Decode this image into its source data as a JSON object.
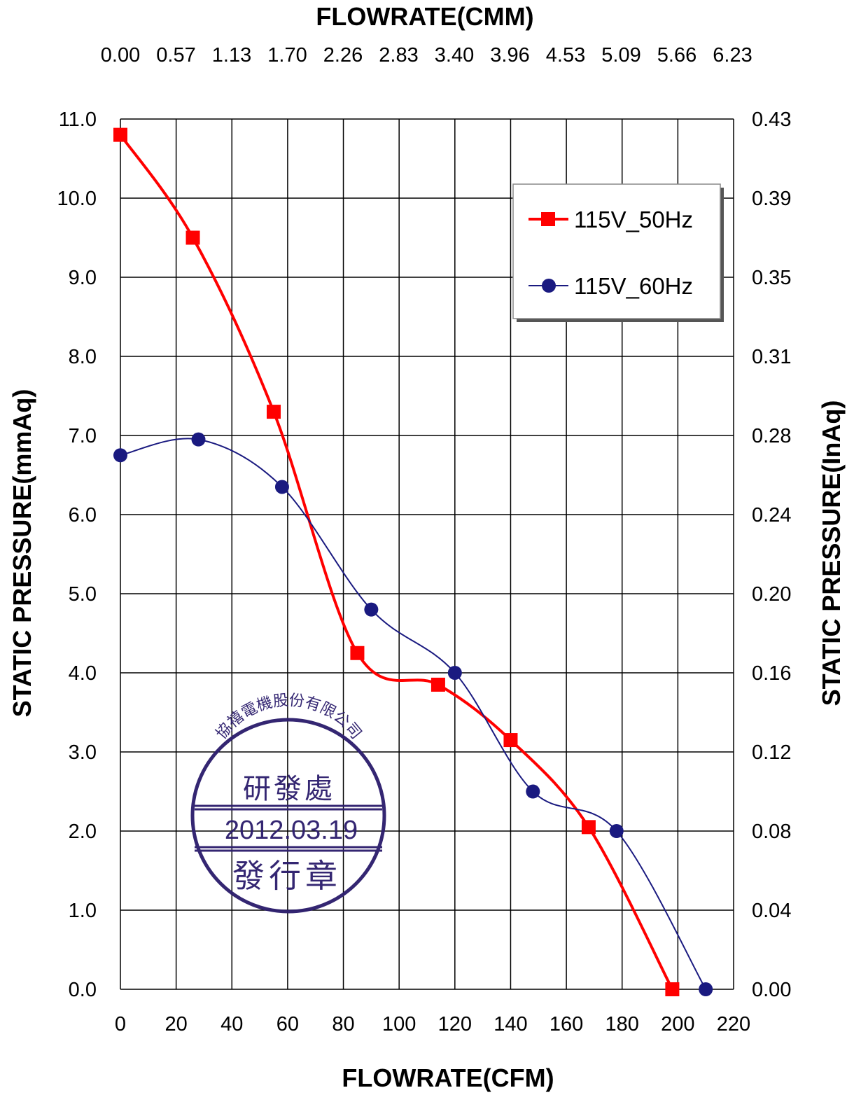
{
  "chart_data": {
    "type": "line",
    "title": "",
    "xlabel": "FLOWRATE(CFM)",
    "x2label": "FLOWRATE(CMM)",
    "ylabel": "STATIC PRESSURE(mmAq)",
    "y2label": "STATIC PRESSURE(InAq)",
    "xlim": [
      0,
      220
    ],
    "ylim": [
      0,
      11
    ],
    "x_ticks": [
      "0",
      "20",
      "40",
      "60",
      "80",
      "100",
      "120",
      "140",
      "160",
      "180",
      "200",
      "220"
    ],
    "x2_ticks": [
      "0.00",
      "0.57",
      "1.13",
      "1.70",
      "2.26",
      "2.83",
      "3.40",
      "3.96",
      "4.53",
      "5.09",
      "5.66",
      "6.23"
    ],
    "y_ticks": [
      "0.0",
      "1.0",
      "2.0",
      "3.0",
      "4.0",
      "5.0",
      "6.0",
      "7.0",
      "8.0",
      "9.0",
      "10.0",
      "11.0"
    ],
    "y2_ticks": [
      "0.00",
      "0.04",
      "0.08",
      "0.12",
      "0.16",
      "0.20",
      "0.24",
      "0.28",
      "0.31",
      "0.35",
      "0.39",
      "0.43"
    ],
    "grid": true,
    "legend_position": "top-right",
    "series": [
      {
        "name": "115V_50Hz",
        "color": "#ff0000",
        "marker": "square",
        "points": [
          [
            0,
            10.8
          ],
          [
            26,
            9.5
          ],
          [
            55,
            7.3
          ],
          [
            85,
            4.25
          ],
          [
            114,
            3.85
          ],
          [
            140,
            3.15
          ],
          [
            168,
            2.05
          ],
          [
            198,
            0.0
          ]
        ]
      },
      {
        "name": "115V_60Hz",
        "color": "#1a1a80",
        "marker": "circle",
        "points": [
          [
            0,
            6.75
          ],
          [
            28,
            6.95
          ],
          [
            58,
            6.35
          ],
          [
            90,
            4.8
          ],
          [
            120,
            4.0
          ],
          [
            148,
            2.5
          ],
          [
            178,
            2.0
          ],
          [
            210,
            0.0
          ]
        ]
      }
    ]
  },
  "stamp": {
    "company": "協禧電機股份有限公司",
    "department": "研發處",
    "date": "2012.03.19",
    "label": "發行章",
    "color": "#2e1f6e"
  }
}
